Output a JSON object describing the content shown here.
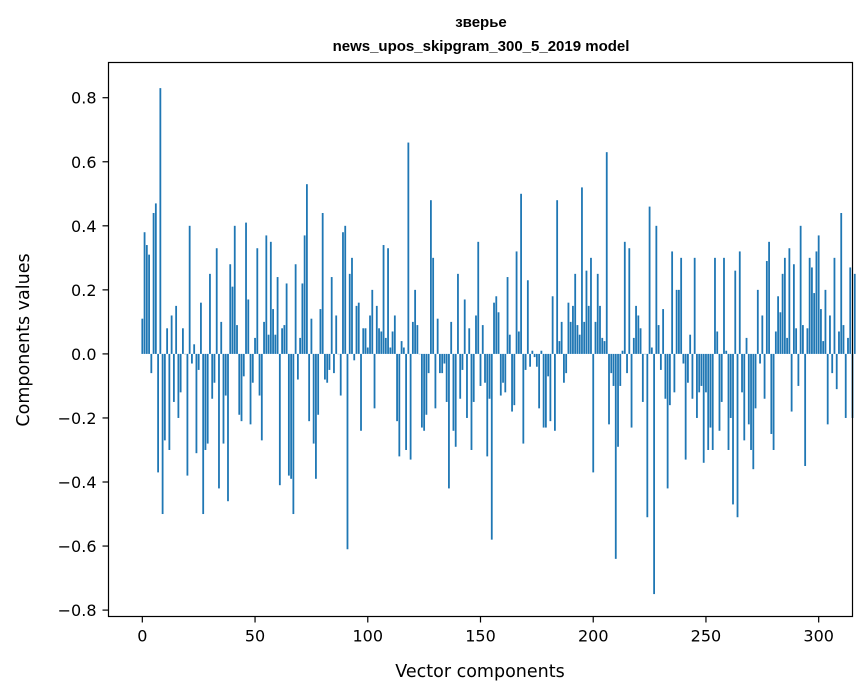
{
  "chart_data": {
    "type": "bar",
    "title": "зверье",
    "subtitle": "news_upos_skipgram_300_5_2019 model",
    "xlabel": "Vector components",
    "ylabel": "Components values",
    "xlim": [
      -15,
      315
    ],
    "ylim": [
      -0.82,
      0.91
    ],
    "xticks": [
      0,
      50,
      100,
      150,
      200,
      250,
      300
    ],
    "xtick_labels": [
      "0",
      "50",
      "100",
      "150",
      "200",
      "250",
      "300"
    ],
    "yticks": [
      -0.8,
      -0.6,
      -0.4,
      -0.2,
      0.0,
      0.2,
      0.4,
      0.6,
      0.8
    ],
    "ytick_labels": [
      "−0.8",
      "−0.6",
      "−0.4",
      "−0.2",
      "0.0",
      "0.2",
      "0.4",
      "0.6",
      "0.8"
    ],
    "bar_color": "#1f77b4",
    "values": [
      0.11,
      0.38,
      0.34,
      0.31,
      -0.06,
      0.44,
      0.47,
      -0.37,
      0.83,
      -0.5,
      -0.27,
      0.08,
      -0.3,
      0.12,
      -0.15,
      0.15,
      -0.2,
      -0.12,
      0.08,
      0.0,
      -0.38,
      0.4,
      -0.03,
      0.03,
      -0.31,
      -0.05,
      0.16,
      -0.5,
      -0.3,
      -0.28,
      0.25,
      -0.14,
      -0.09,
      0.33,
      -0.42,
      0.1,
      -0.28,
      -0.13,
      -0.46,
      0.28,
      0.21,
      0.4,
      0.09,
      -0.19,
      -0.21,
      -0.07,
      0.41,
      0.17,
      -0.22,
      -0.09,
      0.05,
      0.33,
      -0.13,
      -0.27,
      0.1,
      0.37,
      0.06,
      0.35,
      0.14,
      0.06,
      0.24,
      -0.41,
      0.08,
      0.09,
      0.22,
      -0.38,
      -0.39,
      -0.5,
      0.28,
      -0.08,
      0.05,
      0.22,
      0.37,
      0.53,
      -0.21,
      0.11,
      -0.28,
      -0.39,
      -0.19,
      0.14,
      0.44,
      -0.08,
      -0.09,
      -0.05,
      0.24,
      -0.06,
      0.12,
      0.0,
      -0.13,
      0.38,
      0.4,
      -0.61,
      0.25,
      0.3,
      -0.02,
      0.15,
      0.16,
      -0.24,
      0.08,
      0.08,
      0.02,
      0.12,
      0.2,
      -0.17,
      0.15,
      0.08,
      0.07,
      0.34,
      0.05,
      0.33,
      0.02,
      0.07,
      0.12,
      -0.21,
      -0.32,
      0.04,
      0.02,
      -0.3,
      0.66,
      -0.33,
      0.1,
      0.2,
      0.09,
      0.0,
      -0.23,
      -0.24,
      -0.19,
      -0.06,
      0.48,
      0.3,
      -0.17,
      0.11,
      -0.06,
      -0.06,
      -0.03,
      -0.15,
      -0.42,
      0.1,
      -0.24,
      -0.29,
      0.25,
      -0.14,
      -0.05,
      0.17,
      -0.2,
      0.08,
      -0.3,
      -0.15,
      0.12,
      0.35,
      -0.1,
      0.09,
      -0.09,
      -0.32,
      -0.14,
      -0.58,
      0.16,
      0.18,
      0.13,
      -0.13,
      -0.09,
      -0.12,
      0.24,
      0.06,
      -0.18,
      -0.16,
      0.32,
      0.07,
      0.5,
      -0.28,
      -0.05,
      0.23,
      -0.04,
      0.01,
      -0.01,
      -0.04,
      -0.17,
      0.01,
      -0.23,
      -0.23,
      -0.07,
      -0.21,
      0.18,
      -0.24,
      0.48,
      0.04,
      0.1,
      -0.09,
      -0.06,
      0.16,
      0.1,
      0.15,
      0.25,
      0.09,
      0.06,
      0.52,
      0.1,
      0.26,
      0.15,
      0.3,
      -0.37,
      0.1,
      0.25,
      0.15,
      0.05,
      0.04,
      0.63,
      -0.22,
      -0.06,
      -0.1,
      -0.64,
      -0.29,
      -0.1,
      0.01,
      0.35,
      -0.06,
      0.33,
      -0.23,
      0.05,
      0.15,
      0.12,
      0.08,
      -0.15,
      0.0,
      -0.51,
      0.46,
      0.02,
      -0.75,
      0.4,
      0.09,
      -0.05,
      0.14,
      -0.14,
      -0.42,
      -0.16,
      0.32,
      -0.12,
      0.2,
      0.2,
      0.3,
      -0.03,
      -0.33,
      -0.09,
      0.06,
      -0.14,
      0.3,
      -0.2,
      -0.12,
      -0.1,
      -0.34,
      -0.12,
      -0.3,
      -0.23,
      -0.3,
      0.3,
      0.07,
      -0.24,
      -0.15,
      0.3,
      0.01,
      -0.3,
      -0.2,
      -0.47,
      0.26,
      -0.51,
      0.32,
      -0.12,
      -0.27,
      0.05,
      -0.22,
      -0.3,
      -0.36,
      -0.17,
      0.2,
      -0.03,
      0.12,
      -0.14,
      0.29,
      0.35,
      -0.25,
      -0.3,
      0.07,
      0.18,
      0.13,
      0.25,
      0.3,
      0.05,
      0.33,
      -0.18,
      0.28,
      0.08,
      -0.1,
      0.4,
      0.09,
      -0.35,
      0.08,
      0.3,
      0.27,
      0.19,
      0.32,
      0.37,
      0.14,
      0.04,
      0.2,
      -0.22,
      0.12,
      -0.06,
      0.3,
      -0.11,
      0.07,
      0.44,
      0.09,
      -0.2,
      0.05,
      0.27,
      -0.2,
      0.25
    ]
  }
}
